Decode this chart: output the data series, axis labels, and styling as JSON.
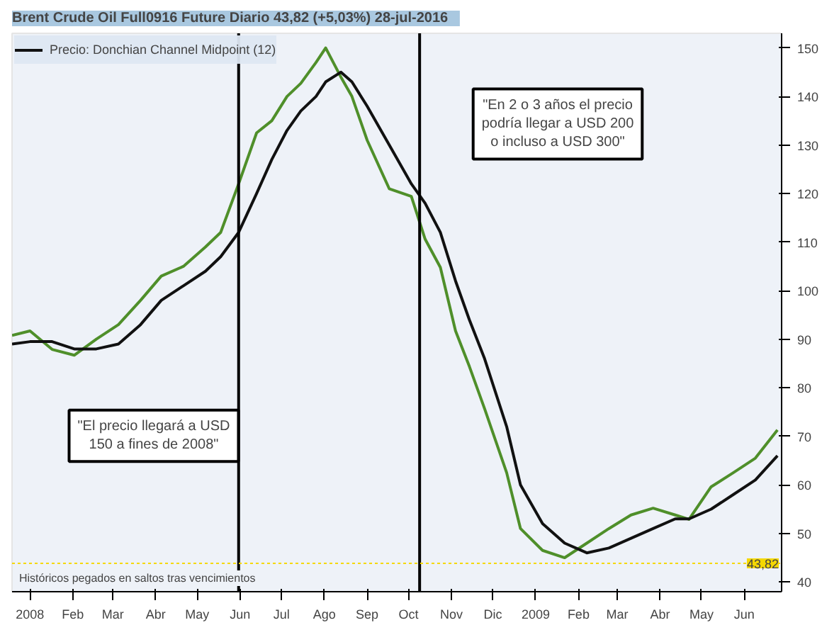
{
  "chart_data": {
    "type": "line",
    "title": "Brent Crude Oil Full0916 Future  Diario  43,82 (+5,03%)  28-jul-2016",
    "x": [
      "2007-12-19",
      "2008-01-01",
      "2008-01-17",
      "2008-02-02",
      "2008-02-18",
      "2008-03-05",
      "2008-03-21",
      "2008-04-05",
      "2008-04-21",
      "2008-05-07",
      "2008-05-18",
      "2008-05-31",
      "2008-06-13",
      "2008-06-24",
      "2008-07-05",
      "2008-07-15",
      "2008-07-26",
      "2008-08-02",
      "2008-08-13",
      "2008-08-21",
      "2008-09-01",
      "2008-09-17",
      "2008-10-03",
      "2008-10-13",
      "2008-10-24",
      "2008-11-04",
      "2008-11-14",
      "2008-11-25",
      "2008-12-11",
      "2008-12-21",
      "2009-01-06",
      "2009-01-22",
      "2009-02-07",
      "2009-02-23",
      "2009-03-11",
      "2009-03-27",
      "2009-04-12",
      "2009-04-22",
      "2009-05-08",
      "2009-05-24",
      "2009-06-09",
      "2009-06-25"
    ],
    "series": [
      {
        "color": "#4f8f2a",
        "values": [
          90.8,
          91.7,
          87.9,
          86.7,
          90,
          93,
          98,
          103,
          105,
          109,
          112,
          122,
          132.5,
          135,
          140,
          142.7,
          147,
          150,
          144,
          140,
          131,
          121,
          119.4,
          110.6,
          104.8,
          91.7,
          84.4,
          75.7,
          62.5,
          51,
          46.5,
          45,
          48,
          51,
          53.8,
          55.2,
          53.8,
          52.9,
          59.6,
          62.5,
          65.5,
          71.3
        ]
      },
      {
        "name": "Precio: Donchian Channel Midpoint (12)",
        "color": "#111111",
        "values": [
          89,
          89.5,
          89.5,
          88,
          88,
          89,
          93,
          98,
          101,
          104,
          107,
          112,
          120,
          127,
          133,
          137,
          140,
          143,
          145,
          143,
          138,
          130,
          122,
          118,
          112,
          102,
          94,
          86,
          72,
          60,
          52,
          48,
          46,
          47,
          49,
          51,
          53,
          53,
          55,
          58,
          61,
          66
        ]
      }
    ],
    "xlim": [
      "2007-12-19",
      "2009-06-28"
    ],
    "xticks": [
      {
        "value": "2008-01-01",
        "label": "2008"
      },
      {
        "value": "2008-02-01",
        "label": "Feb"
      },
      {
        "value": "2008-03-01",
        "label": "Mar"
      },
      {
        "value": "2008-04-01",
        "label": "Abr"
      },
      {
        "value": "2008-05-01",
        "label": "May"
      },
      {
        "value": "2008-06-01",
        "label": "Jun"
      },
      {
        "value": "2008-07-01",
        "label": "Jul"
      },
      {
        "value": "2008-08-01",
        "label": "Ago"
      },
      {
        "value": "2008-09-01",
        "label": "Sep"
      },
      {
        "value": "2008-10-01",
        "label": "Oct"
      },
      {
        "value": "2008-11-01",
        "label": "Nov"
      },
      {
        "value": "2008-12-01",
        "label": "Dic"
      },
      {
        "value": "2009-01-01",
        "label": "2009"
      },
      {
        "value": "2009-02-01",
        "label": "Feb"
      },
      {
        "value": "2009-03-01",
        "label": "Mar"
      },
      {
        "value": "2009-04-01",
        "label": "Abr"
      },
      {
        "value": "2009-05-01",
        "label": "May"
      },
      {
        "value": "2009-06-01",
        "label": "Jun"
      }
    ],
    "ylim": [
      38,
      153
    ],
    "yticks": [
      40,
      50,
      60,
      70,
      80,
      90,
      100,
      110,
      120,
      130,
      140,
      150
    ],
    "ref_lines": [
      {
        "axis": "x",
        "value": "2008-05-31",
        "color": "#000000"
      },
      {
        "axis": "x",
        "value": "2008-10-09",
        "color": "#000000"
      },
      {
        "axis": "y",
        "value": 43.82,
        "label": "43,82",
        "color": "#f5d800"
      }
    ],
    "annotations": [
      "\"El precio llegará a USD 150 a fines de 2008\"",
      "\"En 2 o 3 años el precio podría llegar a USD 200 o incluso a USD 300\"",
      "Históricos pegados en saltos tras vencimientos"
    ],
    "legend": "top left",
    "grid": false
  }
}
